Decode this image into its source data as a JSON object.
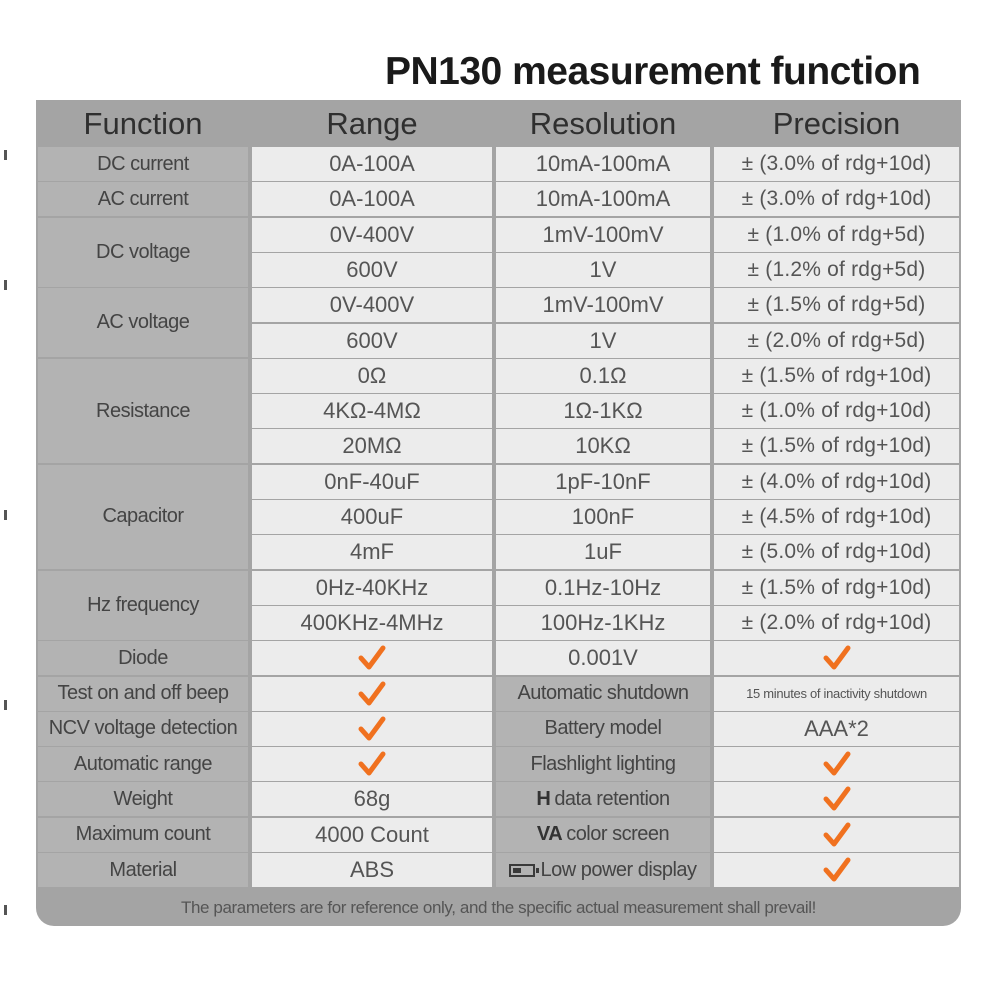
{
  "title": "PN130 measurement function",
  "headers": [
    "Function",
    "Range",
    "Resolution",
    "Precision"
  ],
  "spec_rows": [
    {
      "function": "DC current",
      "range": "0A-100A",
      "resolution": "10mA-100mA",
      "precision": "± (3.0% of rdg+10d)"
    },
    {
      "function": "AC current",
      "range": "0A-100A",
      "resolution": "10mA-100mA",
      "precision": "± (3.0% of rdg+10d)"
    },
    {
      "function": "DC voltage",
      "range": "0V-400V",
      "resolution": "1mV-100mV",
      "precision": "± (1.0% of rdg+5d)"
    },
    {
      "function": "",
      "range": "600V",
      "resolution": "1V",
      "precision": "± (1.2% of rdg+5d)"
    },
    {
      "function": "AC voltage",
      "range": "0V-400V",
      "resolution": "1mV-100mV",
      "precision": "± (1.5% of rdg+5d)"
    },
    {
      "function": "",
      "range": "600V",
      "resolution": "1V",
      "precision": "± (2.0% of rdg+5d)"
    },
    {
      "function": "Resistance",
      "range": "0Ω",
      "resolution": "0.1Ω",
      "precision": "± (1.5% of rdg+10d)"
    },
    {
      "function": "",
      "range": "4KΩ-4MΩ",
      "resolution": "1Ω-1KΩ",
      "precision": "± (1.0% of rdg+10d)"
    },
    {
      "function": "",
      "range": "20MΩ",
      "resolution": "10KΩ",
      "precision": "± (1.5% of rdg+10d)"
    },
    {
      "function": "Capacitor",
      "range": "0nF-40uF",
      "resolution": "1pF-10nF",
      "precision": "± (4.0% of rdg+10d)"
    },
    {
      "function": "",
      "range": "400uF",
      "resolution": "100nF",
      "precision": "± (4.5% of rdg+10d)"
    },
    {
      "function": "",
      "range": "4mF",
      "resolution": "1uF",
      "precision": "± (5.0% of rdg+10d)"
    },
    {
      "function": "Hz frequency",
      "range": "0Hz-40KHz",
      "resolution": "0.1Hz-10Hz",
      "precision": "± (1.5% of rdg+10d)"
    },
    {
      "function": "",
      "range": "400KHz-4MHz",
      "resolution": "100Hz-1KHz",
      "precision": "± (2.0% of rdg+10d)"
    }
  ],
  "diode": {
    "label": "Diode",
    "range": "✓",
    "resolution": "0.001V",
    "precision": "✓"
  },
  "features": [
    {
      "left_label": "Test on and off beep",
      "left_value": "✓",
      "right_label": "Automatic shutdown",
      "right_value": "15 minutes of inactivity shutdown"
    },
    {
      "left_label": "NCV voltage detection",
      "left_value": "✓",
      "right_label": "Battery model",
      "right_value": "AAA*2"
    },
    {
      "left_label": "Automatic range",
      "left_value": "✓",
      "right_label": "Flashlight lighting",
      "right_value": "✓"
    },
    {
      "left_label": "Weight",
      "left_value": "68g",
      "right_label_bold": "H",
      "right_label": "data retention",
      "right_value": "✓"
    },
    {
      "left_label": "Maximum count",
      "left_value": "4000 Count",
      "right_label_bold": "VA",
      "right_label": "color screen",
      "right_value": "✓"
    },
    {
      "left_label": "Material",
      "left_value": "ABS",
      "right_label": "Low power display",
      "right_icon": "battery-low-icon",
      "right_value": "✓"
    }
  ],
  "footer": "The parameters are for reference only, and the specific actual measurement shall prevail!",
  "colors": {
    "check": "#f0711f",
    "label_bg": "#b3b3b3",
    "value_bg": "#ececec",
    "frame": "#a4a4a4"
  }
}
